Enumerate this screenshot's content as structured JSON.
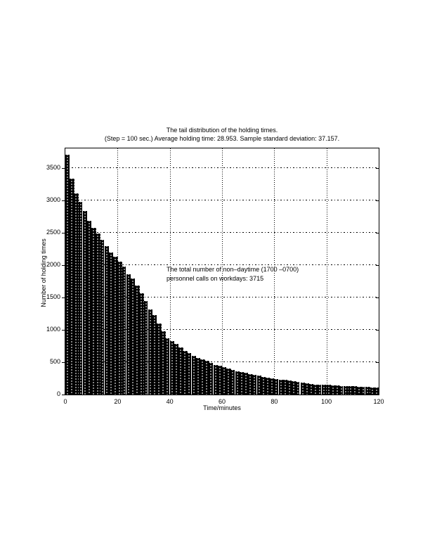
{
  "figure": {
    "title_line1": "The tail distribution of the holding times.",
    "title_line2": "(Step = 100 sec.) Average holding time: 28.953. Sample standard deviation: 37.157.",
    "xlabel": "Time/minutes",
    "ylabel": "Number of holding times",
    "annotation_line1": "The total number of non–daytime (1700 –0700)",
    "annotation_line2": "personnel calls on workdays: 3715",
    "colors": {
      "foreground": "#000000",
      "background": "#ffffff"
    }
  },
  "chart_data": {
    "type": "bar",
    "title": "The tail distribution of the holding times.",
    "subtitle": "(Step = 100 sec.) Average holding time: 28.953. Sample standard deviation: 37.157.",
    "xlabel": "Time/minutes",
    "ylabel": "Number of holding times",
    "annotation": [
      "The total number of non–daytime (1700 –0700)",
      "personnel calls on workdays: 3715"
    ],
    "average_holding_time": 28.953,
    "sample_standard_deviation": 37.157,
    "total_calls": 3715,
    "step_seconds": 100,
    "bin_width_minutes": 1.6667,
    "x_start": 0,
    "xlim": [
      0,
      120
    ],
    "ylim": [
      0,
      3800
    ],
    "xticks": [
      0,
      20,
      40,
      60,
      80,
      100,
      120
    ],
    "yticks": [
      0,
      500,
      1000,
      1500,
      2000,
      2500,
      3000,
      3500
    ],
    "grid": true,
    "bar_color": "#000000",
    "values": [
      3715,
      3340,
      3110,
      2980,
      2840,
      2690,
      2580,
      2490,
      2400,
      2300,
      2200,
      2130,
      2060,
      1986,
      1857,
      1792,
      1684,
      1565,
      1450,
      1317,
      1231,
      1101,
      982,
      874,
      823,
      780,
      726,
      672,
      643,
      600,
      564,
      546,
      520,
      487,
      455,
      448,
      426,
      400,
      379,
      357,
      347,
      336,
      314,
      303,
      292,
      271,
      260,
      249,
      238,
      232,
      227,
      216,
      206,
      195,
      184,
      173,
      165,
      158,
      152,
      150,
      148,
      144,
      140,
      136,
      133,
      130,
      126,
      122,
      119,
      115,
      112,
      108
    ]
  }
}
